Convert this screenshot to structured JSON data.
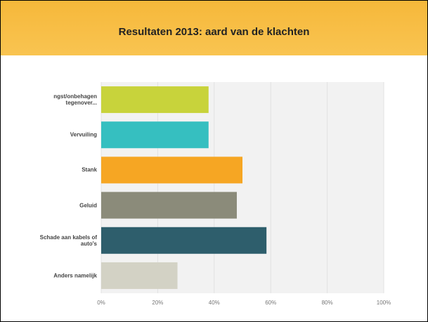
{
  "chart_data": {
    "type": "hbar",
    "title": "Resultaten 2013: aard van de klachten",
    "categories": [
      "ngst/onbehagen tegenover...",
      "Vervuiling",
      "Stank",
      "Geluid",
      "Schade aan kabels of auto's",
      "Anders namelijk"
    ],
    "values": [
      38,
      38,
      50,
      48,
      58.5,
      27
    ],
    "colors": [
      "#c8d33b",
      "#36bfc0",
      "#f6a623",
      "#8b8b7a",
      "#2e5e6c",
      "#d3d2c5"
    ],
    "xlim": [
      0,
      100
    ],
    "xticks": [
      {
        "value": 0,
        "label": "0%"
      },
      {
        "value": 20,
        "label": "20%"
      },
      {
        "value": 40,
        "label": "40%"
      },
      {
        "value": 60,
        "label": "60%"
      },
      {
        "value": 80,
        "label": "80%"
      },
      {
        "value": 100,
        "label": "100%"
      }
    ],
    "grid": true
  }
}
